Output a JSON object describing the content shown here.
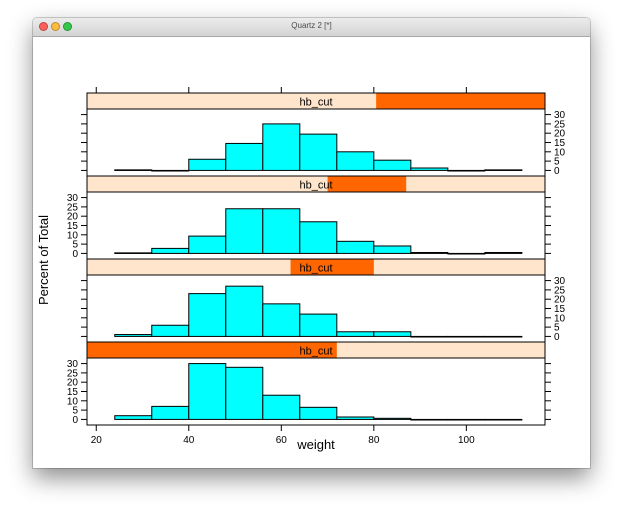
{
  "window": {
    "title": "Quartz 2 [*]"
  },
  "chart_data": {
    "type": "bar",
    "title": "",
    "xlabel": "weight",
    "ylabel": "Percent of Total",
    "strip_label": "hb_cut",
    "xlim": [
      18,
      117
    ],
    "ylim": [
      -3,
      33
    ],
    "x_ticks": [
      20,
      40,
      60,
      80,
      100
    ],
    "y_ticks": [
      0,
      5,
      10,
      15,
      20,
      25,
      30
    ],
    "bin_edges": [
      24,
      32,
      40,
      48,
      56,
      64,
      72,
      80,
      88,
      96,
      104,
      112
    ],
    "colors": {
      "bar_fill": "#00ffff",
      "strip_bg": "#ffe5cc",
      "strip_range": "#ff6600",
      "frame": "#000000"
    },
    "panels": [
      {
        "strip_range": [
          80.5,
          117
        ],
        "percents": [
          0.3,
          0,
          6,
          14.5,
          25,
          19.5,
          10,
          5.5,
          1.3,
          0,
          0.3
        ]
      },
      {
        "strip_range": [
          70,
          87
        ],
        "percents": [
          0.3,
          2.7,
          9.3,
          24,
          24,
          17,
          6.5,
          4,
          0.5,
          0,
          0.5
        ]
      },
      {
        "strip_range": [
          62,
          80
        ],
        "percents": [
          1,
          6,
          23,
          27,
          17.5,
          12,
          2.5,
          2.5,
          0,
          0,
          0
        ]
      },
      {
        "strip_range": [
          18,
          72
        ],
        "percents": [
          2,
          7,
          30,
          28,
          13,
          6.5,
          1.3,
          0.6,
          0,
          0,
          0
        ]
      }
    ]
  }
}
